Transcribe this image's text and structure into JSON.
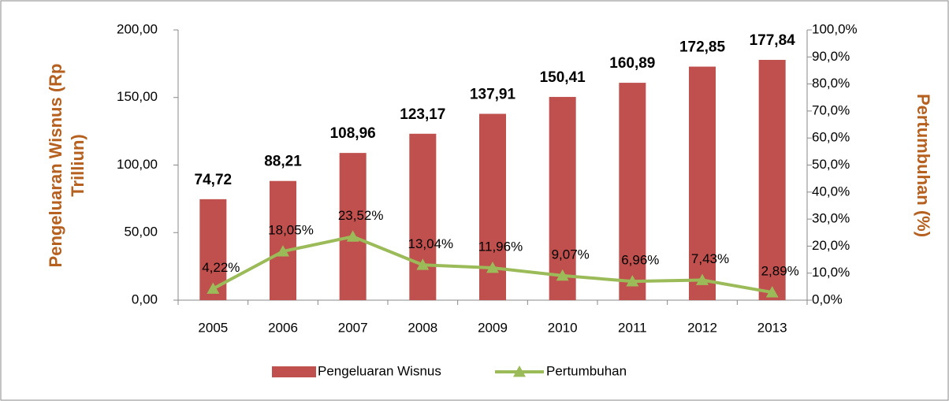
{
  "chart_data": {
    "type": "combo",
    "ylabel": [
      "Pengeluaran Wisnus (Rp",
      "Trilliun)"
    ],
    "y2label": "Pertumbuhan (%)",
    "categories": [
      "2005",
      "2006",
      "2007",
      "2008",
      "2009",
      "2010",
      "2011",
      "2012",
      "2013"
    ],
    "series": [
      {
        "name": "Pengeluaran Wisnus",
        "type": "bar",
        "color": "#c0504d",
        "values": [
          74.72,
          88.21,
          108.96,
          123.17,
          137.91,
          150.41,
          160.89,
          172.85,
          177.84
        ],
        "value_labels": [
          "74,72",
          "88,21",
          "108,96",
          "123,17",
          "137,91",
          "150,41",
          "160,89",
          "172,85",
          "177,84"
        ]
      },
      {
        "name": "Pertumbuhan",
        "type": "line",
        "axis": "y2",
        "color": "#9bbb59",
        "values": [
          4.22,
          18.05,
          23.52,
          13.04,
          11.96,
          9.07,
          6.96,
          7.43,
          2.89
        ],
        "value_labels": [
          "4,22%",
          "18,05%",
          "23,52%",
          "13,04%",
          "11,96%",
          "9,07%",
          "6,96%",
          "7,43%",
          "2,89%"
        ]
      }
    ],
    "ylim": [
      0,
      200
    ],
    "yticks": [
      {
        "value": 0,
        "label": "0,00"
      },
      {
        "value": 50,
        "label": "50,00"
      },
      {
        "value": 100,
        "label": "100,00"
      },
      {
        "value": 150,
        "label": "150,00"
      },
      {
        "value": 200,
        "label": "200,00"
      }
    ],
    "y2lim": [
      0,
      100
    ],
    "y2ticks": [
      {
        "value": 0,
        "label": "0,0%"
      },
      {
        "value": 10,
        "label": "10,0%"
      },
      {
        "value": 20,
        "label": "20,0%"
      },
      {
        "value": 30,
        "label": "30,0%"
      },
      {
        "value": 40,
        "label": "40,0%"
      },
      {
        "value": 50,
        "label": "50,0%"
      },
      {
        "value": 60,
        "label": "60,0%"
      },
      {
        "value": 70,
        "label": "70,0%"
      },
      {
        "value": 80,
        "label": "80,0%"
      },
      {
        "value": 90,
        "label": "90,0%"
      },
      {
        "value": 100,
        "label": "100,0%"
      }
    ],
    "legend": "bottom"
  }
}
